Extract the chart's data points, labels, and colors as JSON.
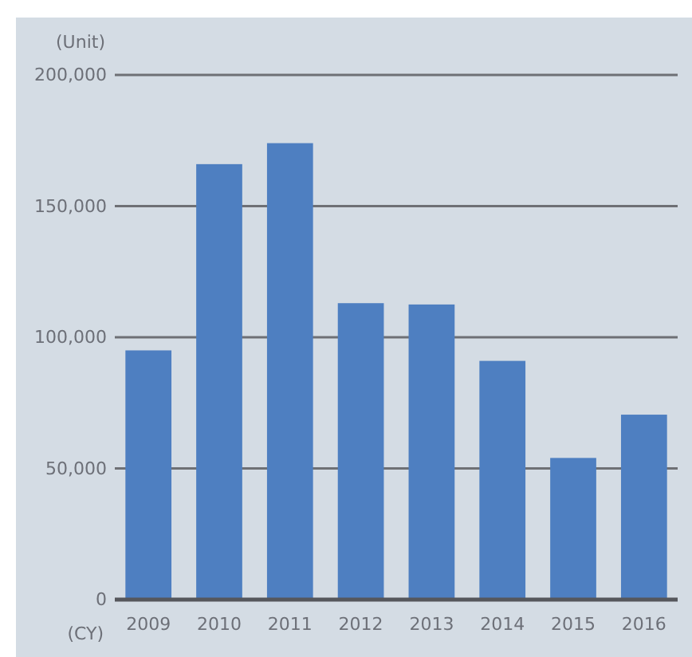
{
  "chart_data": {
    "type": "bar",
    "xlabel": "(CY)",
    "ylabel": "(Unit)",
    "categories": [
      "2009",
      "2010",
      "2011",
      "2012",
      "2013",
      "2014",
      "2015",
      "2016"
    ],
    "values": [
      95000,
      166000,
      174000,
      113000,
      112500,
      91000,
      54000,
      70500
    ],
    "color": "#4e7fc1",
    "ylim": [
      0,
      200000
    ],
    "yticks": [
      {
        "value": 0,
        "label": "0"
      },
      {
        "value": 50000,
        "label": "50,000"
      },
      {
        "value": 100000,
        "label": "100,000"
      },
      {
        "value": 150000,
        "label": "150,000"
      },
      {
        "value": 200000,
        "label": "200,000"
      }
    ],
    "grid": "y"
  }
}
